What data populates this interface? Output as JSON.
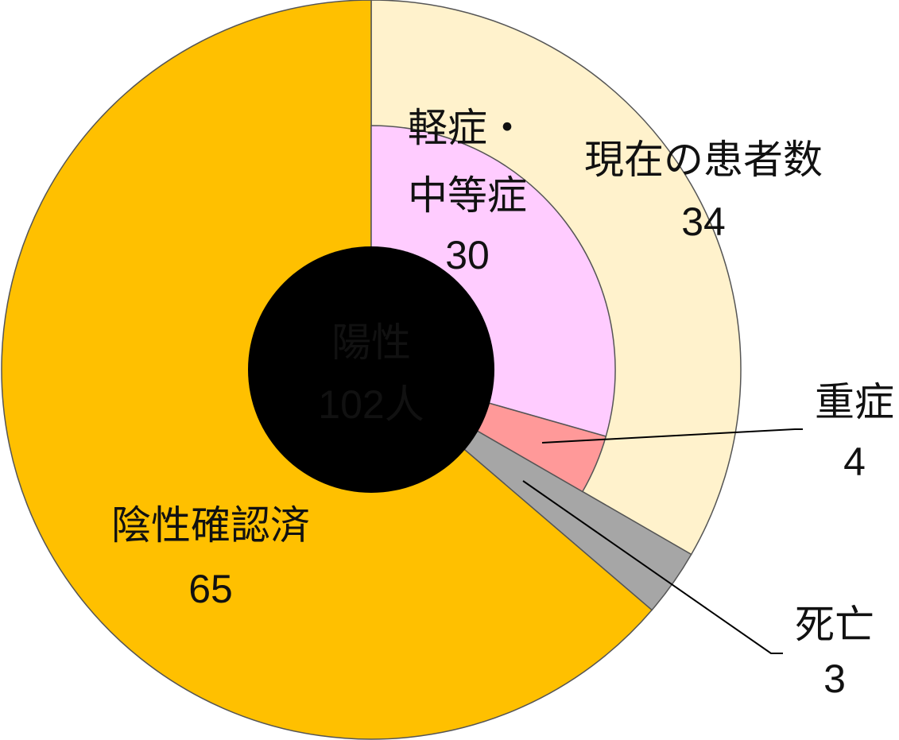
{
  "chart_data": {
    "type": "pie",
    "center_label": [
      "陽性",
      "102人"
    ],
    "rings": [
      {
        "labels": [
          "現在の患者数",
          "死亡",
          "陰性確認済"
        ],
        "values": [
          34,
          3,
          65
        ],
        "colors": [
          "#fff2cc",
          "#a6a6a6",
          "#ffc000"
        ]
      },
      {
        "labels": [
          "軽症・\n中等症",
          "重症"
        ],
        "values": [
          30,
          4
        ],
        "colors": [
          "#ffccff",
          "#ff9999"
        ]
      }
    ]
  }
}
